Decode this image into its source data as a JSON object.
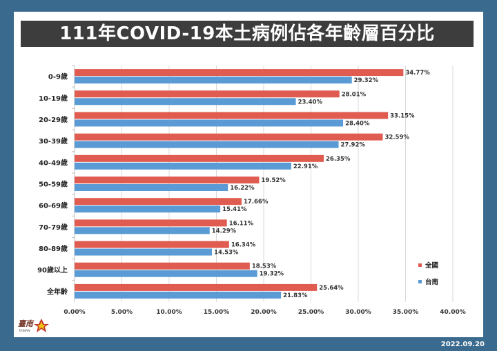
{
  "header": {
    "title": "111年COVID-19本土病例佔各年齡層百分比"
  },
  "footer": {
    "date": "2022.09.20"
  },
  "logo": {
    "text": "臺南",
    "caption": "TAINAN"
  },
  "colors": {
    "national": "#e05c50",
    "tainan": "#5b9bd5",
    "background": "#3a6a8e"
  },
  "chart_data": {
    "type": "bar",
    "orientation": "horizontal",
    "categories": [
      "0-9歲",
      "10-19歲",
      "20-29歲",
      "30-39歲",
      "40-49歲",
      "50-59歲",
      "60-69歲",
      "70-79歲",
      "80-89歲",
      "90歲以上",
      "全年齡"
    ],
    "series": [
      {
        "name": "全國",
        "color": "#e05c50",
        "values": [
          34.77,
          28.01,
          33.15,
          32.59,
          26.35,
          19.52,
          17.66,
          16.11,
          16.34,
          18.53,
          25.64
        ],
        "labels": [
          "34.77%",
          "28.01%",
          "33.15%",
          "32.59%",
          "26.35%",
          "19.52%",
          "17.66%",
          "16.11%",
          "16.34%",
          "18.53%",
          "25.64%"
        ]
      },
      {
        "name": "台南",
        "color": "#5b9bd5",
        "values": [
          29.32,
          23.4,
          28.4,
          27.92,
          22.91,
          16.22,
          15.41,
          14.29,
          14.53,
          19.32,
          21.83
        ],
        "labels": [
          "29.32%",
          "23.40%",
          "28.40%",
          "27.92%",
          "22.91%",
          "16.22%",
          "15.41%",
          "14.29%",
          "14.53%",
          "19.32%",
          "21.83%"
        ]
      }
    ],
    "xlim": [
      0,
      40
    ],
    "xticks": [
      "0.00%",
      "5.00%",
      "10.00%",
      "15.00%",
      "20.00%",
      "25.00%",
      "30.00%",
      "35.00%",
      "40.00%"
    ],
    "grid": true,
    "legend": "bottom-right"
  }
}
